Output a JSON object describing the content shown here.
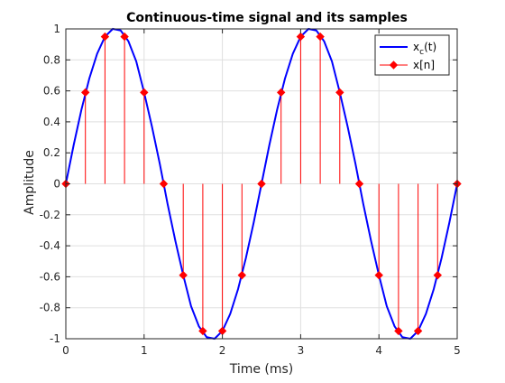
{
  "chart_data": {
    "type": "line",
    "title": "Continuous-time signal and its samples",
    "xlabel": "Time (ms)",
    "ylabel": "Amplitude",
    "xlim": [
      0,
      5
    ],
    "ylim": [
      -1,
      1
    ],
    "grid": true,
    "x_ticks": [
      "0",
      "1",
      "2",
      "3",
      "4",
      "5"
    ],
    "y_ticks": [
      "-1",
      "-0.8",
      "-0.6",
      "-0.4",
      "-0.2",
      "0",
      "0.2",
      "0.4",
      "0.6",
      "0.8",
      "1"
    ],
    "legend": {
      "placement": "top-right",
      "entries": [
        {
          "label_main": "x",
          "label_sub": "c",
          "label_tail": "(t)",
          "style": "line",
          "color": "#0000ff"
        },
        {
          "label_main": "x[n]",
          "label_sub": "",
          "label_tail": "",
          "style": "stem",
          "color": "#ff0000"
        }
      ]
    },
    "series": [
      {
        "name": "xc(t)",
        "kind": "continuous",
        "color": "#0000ff",
        "x": [
          0,
          0.1,
          0.2,
          0.3,
          0.4,
          0.5,
          0.6,
          0.7,
          0.8,
          0.9,
          1.0,
          1.1,
          1.2,
          1.3,
          1.4,
          1.5,
          1.6,
          1.7,
          1.8,
          1.9,
          2.0,
          2.1,
          2.2,
          2.3,
          2.4,
          2.5,
          2.6,
          2.7,
          2.8,
          2.9,
          3.0,
          3.1,
          3.2,
          3.3,
          3.4,
          3.5,
          3.6,
          3.7,
          3.8,
          3.9,
          4.0,
          4.1,
          4.2,
          4.3,
          4.4,
          4.5,
          4.6,
          4.7,
          4.8,
          4.9,
          5.0
        ],
        "y": [
          0,
          0.25,
          0.48,
          0.68,
          0.84,
          0.95,
          1.0,
          0.99,
          0.92,
          0.79,
          0.59,
          0.37,
          0.13,
          -0.13,
          -0.37,
          -0.59,
          -0.79,
          -0.92,
          -0.99,
          -1.0,
          -0.95,
          -0.84,
          -0.68,
          -0.48,
          -0.25,
          0,
          0.25,
          0.48,
          0.68,
          0.84,
          0.95,
          1.0,
          0.99,
          0.92,
          0.79,
          0.59,
          0.37,
          0.13,
          -0.13,
          -0.37,
          -0.59,
          -0.79,
          -0.92,
          -0.99,
          -1.0,
          -0.95,
          -0.84,
          -0.68,
          -0.48,
          -0.25,
          0
        ]
      },
      {
        "name": "x[n]",
        "kind": "stem",
        "color": "#ff0000",
        "x": [
          0,
          0.25,
          0.5,
          0.75,
          1.0,
          1.25,
          1.5,
          1.75,
          2.0,
          2.25,
          2.5,
          2.75,
          3.0,
          3.25,
          3.5,
          3.75,
          4.0,
          4.25,
          4.5,
          4.75,
          5.0
        ],
        "y": [
          0,
          0.59,
          0.95,
          0.95,
          0.59,
          0,
          -0.59,
          -0.95,
          -0.95,
          -0.59,
          0,
          0.59,
          0.95,
          0.95,
          0.59,
          0,
          -0.59,
          -0.95,
          -0.95,
          -0.59,
          0
        ]
      }
    ]
  }
}
